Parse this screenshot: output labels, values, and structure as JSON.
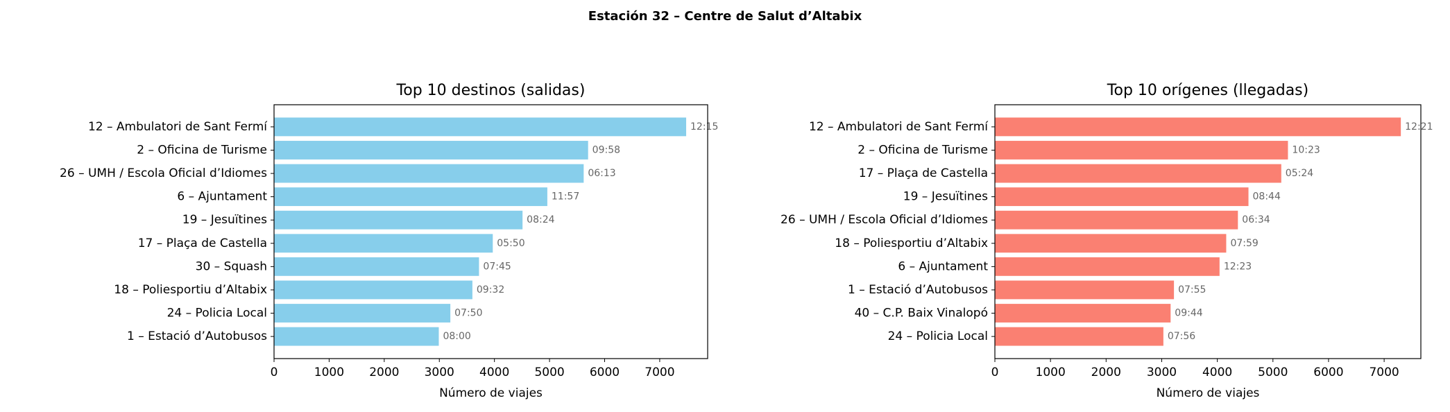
{
  "figure_title": "Estación 32 – Centre de Salut d’Altabix",
  "chart_data": [
    {
      "type": "bar",
      "orientation": "horizontal",
      "title": "Top 10 destinos (salidas)",
      "x_label": "Número de viajes",
      "categories": [
        "12 – Ambulatori de Sant Fermí",
        "2 – Oficina de Turisme",
        "26 – UMH / Escola Oficial d’Idiomes",
        "6 – Ajuntament",
        "19 – Jesuïtines",
        "17 – Plaça de Castella",
        "30 – Squash",
        "18 – Poliesportiu d’Altabix",
        "24 – Policia Local",
        "1 – Estació d’Autobusos"
      ],
      "values": [
        7480,
        5700,
        5620,
        4960,
        4510,
        3970,
        3720,
        3600,
        3200,
        2990
      ],
      "bar_annotations": [
        "12:15",
        "09:58",
        "06:13",
        "11:57",
        "08:24",
        "05:50",
        "07:45",
        "09:32",
        "07:50",
        "08:00"
      ],
      "color": "#87ceeb",
      "xlim": [
        0,
        7870
      ],
      "xticks": [
        0,
        1000,
        2000,
        3000,
        4000,
        5000,
        6000,
        7000
      ]
    },
    {
      "type": "bar",
      "orientation": "horizontal",
      "title": "Top 10 orígenes (llegadas)",
      "x_label": "Número de viajes",
      "categories": [
        "12 – Ambulatori de Sant Fermí",
        "2 – Oficina de Turisme",
        "17 – Plaça de Castella",
        "19 – Jesuïtines",
        "26 – UMH / Escola Oficial d’Idiomes",
        "18 – Poliesportiu d’Altabix",
        "6 – Ajuntament",
        "1 – Estació d’Autobusos",
        "40 – C.P. Baix Vinalopó",
        "24 – Policia Local"
      ],
      "values": [
        7300,
        5270,
        5150,
        4560,
        4370,
        4160,
        4040,
        3220,
        3160,
        3030
      ],
      "bar_annotations": [
        "12:21",
        "10:23",
        "05:24",
        "08:44",
        "06:34",
        "07:59",
        "12:23",
        "07:55",
        "09:44",
        "07:56"
      ],
      "color": "#fa8072",
      "xlim": [
        0,
        7660
      ],
      "xticks": [
        0,
        1000,
        2000,
        3000,
        4000,
        5000,
        6000,
        7000
      ]
    }
  ]
}
